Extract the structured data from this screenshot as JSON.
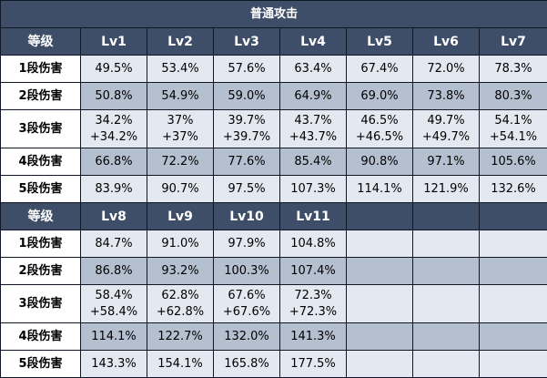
{
  "title": "普通攻击",
  "label_header": "等级",
  "block1": {
    "levels": [
      "Lv1",
      "Lv2",
      "Lv3",
      "Lv4",
      "Lv5",
      "Lv6",
      "Lv7"
    ],
    "rows": [
      {
        "label": "1段伤害",
        "values": [
          [
            "49.5%"
          ],
          [
            "53.4%"
          ],
          [
            "57.6%"
          ],
          [
            "63.4%"
          ],
          [
            "67.4%"
          ],
          [
            "72.0%"
          ],
          [
            "78.3%"
          ]
        ]
      },
      {
        "label": "2段伤害",
        "values": [
          [
            "50.8%"
          ],
          [
            "54.9%"
          ],
          [
            "59.0%"
          ],
          [
            "64.9%"
          ],
          [
            "69.0%"
          ],
          [
            "73.8%"
          ],
          [
            "80.3%"
          ]
        ]
      },
      {
        "label": "3段伤害",
        "values": [
          [
            "34.2%",
            "+34.2%"
          ],
          [
            "37%",
            "+37%"
          ],
          [
            "39.7%",
            "+39.7%"
          ],
          [
            "43.7%",
            "+43.7%"
          ],
          [
            "46.5%",
            "+46.5%"
          ],
          [
            "49.7%",
            "+49.7%"
          ],
          [
            "54.1%",
            "+54.1%"
          ]
        ]
      },
      {
        "label": "4段伤害",
        "values": [
          [
            "66.8%"
          ],
          [
            "72.2%"
          ],
          [
            "77.6%"
          ],
          [
            "85.4%"
          ],
          [
            "90.8%"
          ],
          [
            "97.1%"
          ],
          [
            "105.6%"
          ]
        ]
      },
      {
        "label": "5段伤害",
        "values": [
          [
            "83.9%"
          ],
          [
            "90.7%"
          ],
          [
            "97.5%"
          ],
          [
            "107.3%"
          ],
          [
            "114.1%"
          ],
          [
            "121.9%"
          ],
          [
            "132.6%"
          ]
        ]
      }
    ]
  },
  "block2": {
    "levels": [
      "Lv8",
      "Lv9",
      "Lv10",
      "Lv11",
      "",
      "",
      ""
    ],
    "rows": [
      {
        "label": "1段伤害",
        "values": [
          [
            "84.7%"
          ],
          [
            "91.0%"
          ],
          [
            "97.9%"
          ],
          [
            "104.8%"
          ],
          [],
          [],
          []
        ]
      },
      {
        "label": "2段伤害",
        "values": [
          [
            "86.8%"
          ],
          [
            "93.2%"
          ],
          [
            "100.3%"
          ],
          [
            "107.4%"
          ],
          [],
          [],
          []
        ]
      },
      {
        "label": "3段伤害",
        "values": [
          [
            "58.4%",
            "+58.4%"
          ],
          [
            "62.8%",
            "+62.8%"
          ],
          [
            "67.6%",
            "+67.6%"
          ],
          [
            "72.3%",
            "+72.3%"
          ],
          [],
          [],
          []
        ]
      },
      {
        "label": "4段伤害",
        "values": [
          [
            "114.1%"
          ],
          [
            "122.7%"
          ],
          [
            "132.0%"
          ],
          [
            "141.3%"
          ],
          [],
          [],
          []
        ]
      },
      {
        "label": "5段伤害",
        "values": [
          [
            "143.3%"
          ],
          [
            "154.1%"
          ],
          [
            "165.8%"
          ],
          [
            "177.5%"
          ],
          [],
          [],
          []
        ]
      }
    ]
  },
  "colors": {
    "header_bg": "#3f4e68",
    "row_light": "#e4e8f0",
    "row_dark": "#b4bfcf",
    "border": "#0f1626"
  }
}
